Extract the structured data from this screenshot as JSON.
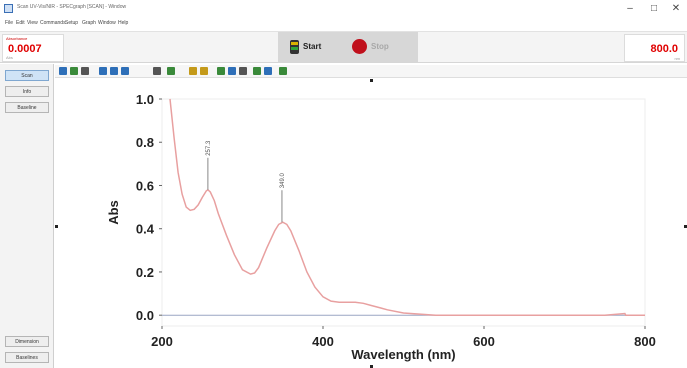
{
  "window": {
    "title": "Scan UV-Vis/NIR - SPECgraph [SCAN] - Window",
    "minimize_glyph": "–",
    "maximize_glyph": "□",
    "close_glyph": "✕"
  },
  "menu": [
    "File",
    "Edit",
    "View",
    "Commands",
    "Setup",
    "Graph",
    "Window",
    "Help"
  ],
  "readout": {
    "abs_label": "Absorbance",
    "abs_value": "0.0007",
    "abs_unit": "Abs",
    "wavelength_value": "800.0",
    "wavelength_unit": "nm"
  },
  "controls": {
    "start_label": "Start",
    "stop_label": "Stop"
  },
  "sidebar": {
    "top_buttons": [
      "Scan",
      "Info",
      "Baseline"
    ],
    "bottom_buttons": [
      "Dimension",
      "Baselines"
    ]
  },
  "toolbar_icons": [
    "zoom-icon",
    "pointer-icon",
    "cursor-icon",
    "cross-icon",
    "marker-icon",
    "text-icon",
    "peak-icon",
    "print-icon",
    "save-icon",
    "copy-icon",
    "export-icon",
    "report-icon"
  ],
  "colors": {
    "readout_red": "#e00000",
    "spectrum": "#e8a0a0",
    "toolbar_icon_a": "#2e6fb8",
    "toolbar_icon_b": "#3a8a3a",
    "toolbar_icon_c": "#c49a1a"
  },
  "chart_data": {
    "type": "line",
    "xlabel": "Wavelength (nm)",
    "ylabel": "Abs",
    "xlim": [
      200,
      800
    ],
    "ylim": [
      -0.05,
      1.0
    ],
    "xticks": [
      "200",
      "400",
      "600",
      "800"
    ],
    "yticks": [
      "0.0",
      "0.2",
      "0.4",
      "0.6",
      "0.8",
      "1.0"
    ],
    "grid": false,
    "series": [
      {
        "x": [
          210,
          215,
          220,
          225,
          230,
          235,
          240,
          245,
          250,
          255,
          257,
          260,
          265,
          270,
          280,
          290,
          300,
          310,
          315,
          320,
          330,
          340,
          345,
          350,
          355,
          360,
          370,
          380,
          390,
          400,
          410,
          420,
          440,
          450,
          460,
          470,
          480,
          500,
          520,
          540,
          560,
          600,
          650,
          700,
          750,
          775,
          776,
          800
        ],
        "y": [
          1.0,
          0.82,
          0.66,
          0.56,
          0.5,
          0.485,
          0.49,
          0.51,
          0.545,
          0.575,
          0.58,
          0.57,
          0.53,
          0.47,
          0.37,
          0.28,
          0.21,
          0.19,
          0.195,
          0.22,
          0.31,
          0.39,
          0.42,
          0.43,
          0.42,
          0.39,
          0.3,
          0.2,
          0.13,
          0.085,
          0.065,
          0.06,
          0.06,
          0.055,
          0.045,
          0.035,
          0.025,
          0.01,
          0.005,
          0.0,
          0.0,
          0.0,
          0.0,
          0.0,
          0.0,
          0.008,
          0.0,
          0.0
        ]
      }
    ],
    "peaks": [
      {
        "x": 257,
        "y": 0.58,
        "label": "257.3"
      },
      {
        "x": 349,
        "y": 0.43,
        "label": "349.0"
      }
    ]
  }
}
